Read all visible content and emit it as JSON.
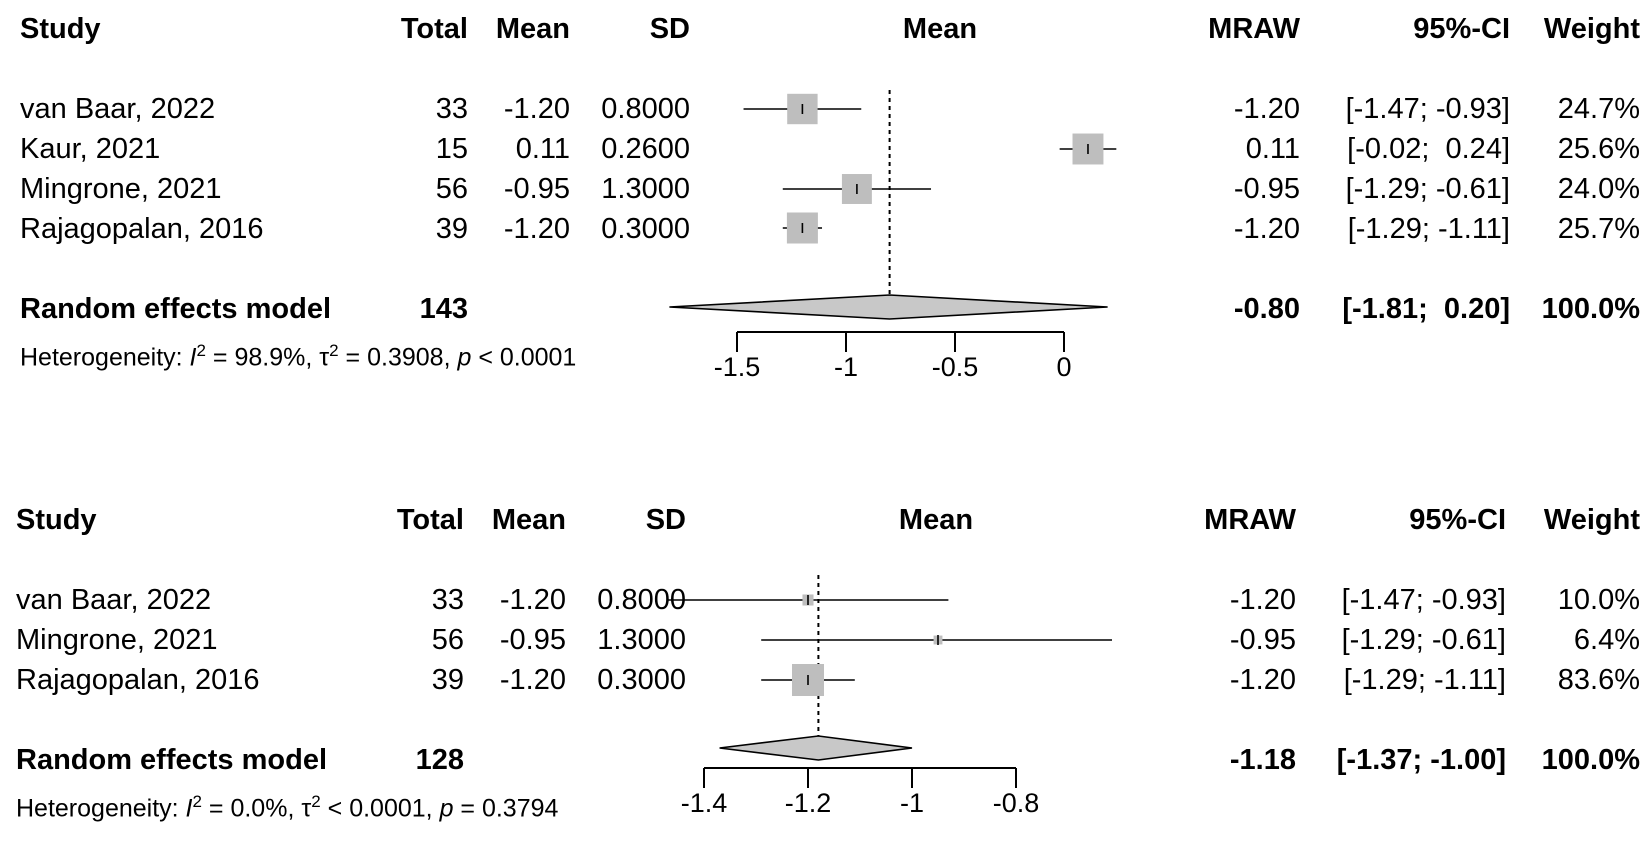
{
  "chart_data": [
    {
      "type": "forest",
      "headers": {
        "study": "Study",
        "total": "Total",
        "mean": "Mean",
        "sd": "SD",
        "plot": "Mean",
        "effect": "MRAW",
        "ci": "95%-CI",
        "weight": "Weight"
      },
      "xlim": [
        -1.5,
        0
      ],
      "ticks": [
        -1.5,
        -1,
        -0.5,
        0
      ],
      "tick_labels": [
        "-1.5",
        "-1",
        "-0.5",
        "0"
      ],
      "studies": [
        {
          "study": "van Baar, 2022",
          "total": "33",
          "mean": "-1.20",
          "sd": "0.8000",
          "effect": "-1.20",
          "ci": "[-1.47; -0.93]",
          "weight": "24.7%",
          "est": -1.2,
          "lo": -1.47,
          "hi": -0.93,
          "w": 24.7
        },
        {
          "study": "Kaur, 2021",
          "total": "15",
          "mean": "0.11",
          "sd": "0.2600",
          "effect": "0.11",
          "ci": "[-0.02;  0.24]",
          "weight": "25.6%",
          "est": 0.11,
          "lo": -0.02,
          "hi": 0.24,
          "w": 25.6
        },
        {
          "study": "Mingrone, 2021",
          "total": "56",
          "mean": "-0.95",
          "sd": "1.3000",
          "effect": "-0.95",
          "ci": "[-1.29; -0.61]",
          "weight": "24.0%",
          "est": -0.95,
          "lo": -1.29,
          "hi": -0.61,
          "w": 24.0
        },
        {
          "study": "Rajagopalan, 2016",
          "total": "39",
          "mean": "-1.20",
          "sd": "0.3000",
          "effect": "-1.20",
          "ci": "[-1.29; -1.11]",
          "weight": "25.7%",
          "est": -1.2,
          "lo": -1.29,
          "hi": -1.11,
          "w": 25.7
        }
      ],
      "pooled": {
        "label": "Random effects model",
        "total": "143",
        "effect": "-0.80",
        "ci": "[-1.81;  0.20]",
        "weight": "100.0%",
        "est": -0.8,
        "lo": -1.81,
        "hi": 0.2
      },
      "heterogeneity": {
        "prefix": "Heterogeneity: ",
        "i2_sym": "I",
        "sup": "2",
        "i2_val": " = 98.9%, ",
        "tau_sym": "τ",
        "tau_val": " = 0.3908, ",
        "p_sym": "p",
        "p_val": " < 0.0001"
      }
    },
    {
      "type": "forest",
      "headers": {
        "study": "Study",
        "total": "Total",
        "mean": "Mean",
        "sd": "SD",
        "plot": "Mean",
        "effect": "MRAW",
        "ci": "95%-CI",
        "weight": "Weight"
      },
      "xlim": [
        -1.4,
        -0.8
      ],
      "ticks": [
        -1.4,
        -1.2,
        -1,
        -0.8
      ],
      "tick_labels": [
        "-1.4",
        "-1.2",
        "-1",
        "-0.8"
      ],
      "studies": [
        {
          "study": "van Baar, 2022",
          "total": "33",
          "mean": "-1.20",
          "sd": "0.8000",
          "effect": "-1.20",
          "ci": "[-1.47; -0.93]",
          "weight": "10.0%",
          "est": -1.2,
          "lo": -1.47,
          "hi": -0.93,
          "w": 10.0
        },
        {
          "study": "Mingrone, 2021",
          "total": "56",
          "mean": "-0.95",
          "sd": "1.3000",
          "effect": "-0.95",
          "ci": "[-1.29; -0.61]",
          "weight": "6.4%",
          "est": -0.95,
          "lo": -1.29,
          "hi": -0.61,
          "w": 6.4
        },
        {
          "study": "Rajagopalan, 2016",
          "total": "39",
          "mean": "-1.20",
          "sd": "0.3000",
          "effect": "-1.20",
          "ci": "[-1.29; -1.11]",
          "weight": "83.6%",
          "est": -1.2,
          "lo": -1.29,
          "hi": -1.11,
          "w": 83.6
        }
      ],
      "pooled": {
        "label": "Random effects model",
        "total": "128",
        "effect": "-1.18",
        "ci": "[-1.37; -1.00]",
        "weight": "100.0%",
        "est": -1.18,
        "lo": -1.37,
        "hi": -1.0
      },
      "heterogeneity": {
        "prefix": "Heterogeneity: ",
        "i2_sym": "I",
        "sup": "2",
        "i2_val": " = 0.0%, ",
        "tau_sym": "τ",
        "tau_val": " < 0.0001, ",
        "p_sym": "p",
        "p_val": " = 0.3794"
      }
    }
  ]
}
